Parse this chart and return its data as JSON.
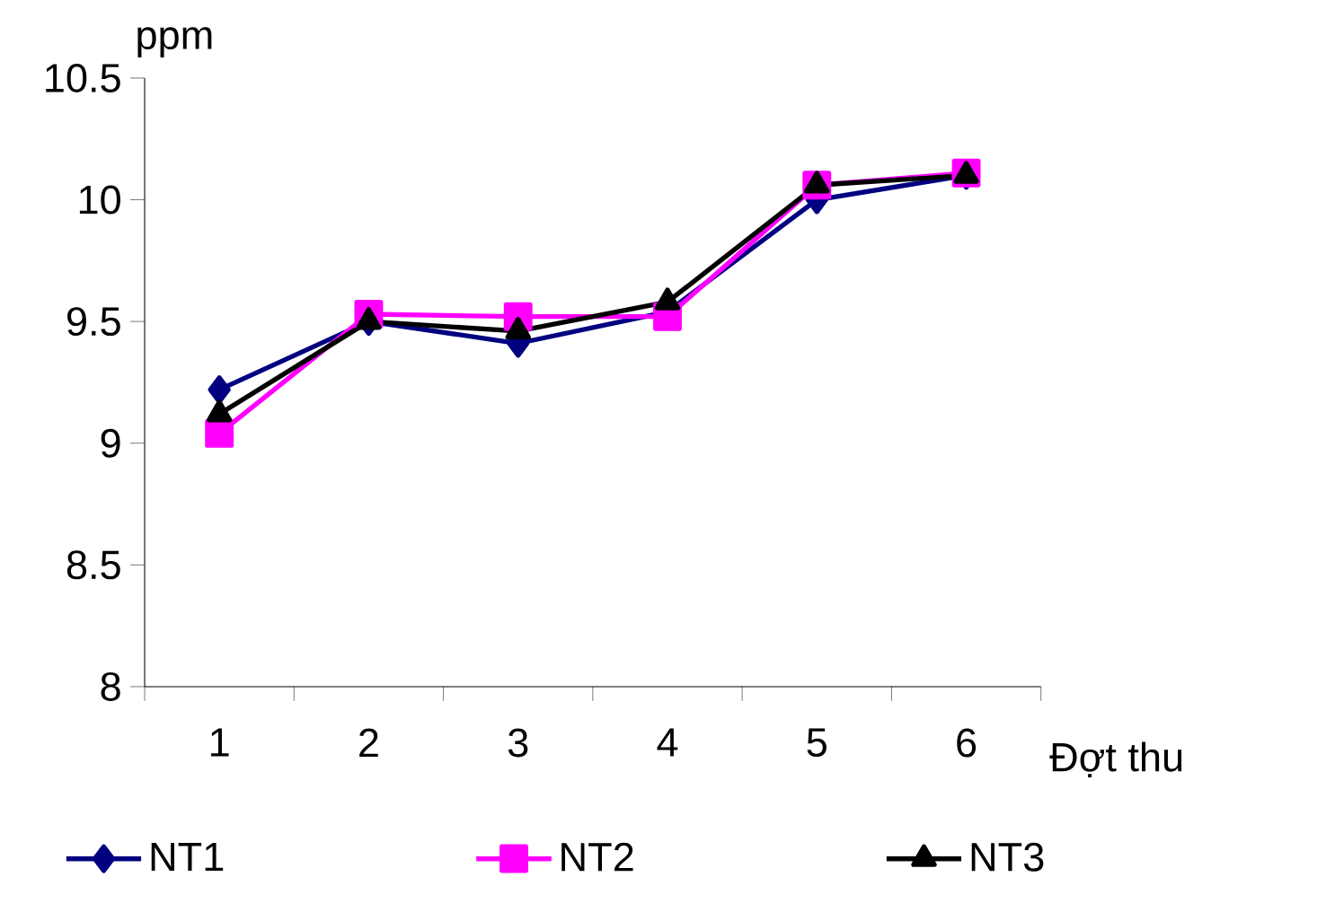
{
  "chart_data": {
    "type": "line",
    "xlabel": "Đợt thu",
    "ylabel": "ppm",
    "categories": [
      "1",
      "2",
      "3",
      "4",
      "5",
      "6"
    ],
    "ylim": [
      8,
      10.5
    ],
    "yticks": [
      8,
      8.5,
      9,
      9.5,
      10,
      10.5
    ],
    "grid": false,
    "legend": "bottom",
    "series": [
      {
        "name": "NT1",
        "color": "#000080",
        "marker": "diamond",
        "values": [
          9.22,
          9.5,
          9.41,
          9.54,
          10.0,
          10.1
        ]
      },
      {
        "name": "NT2",
        "color": "#ff00ff",
        "marker": "square",
        "values": [
          9.04,
          9.53,
          9.52,
          9.52,
          10.06,
          10.11
        ]
      },
      {
        "name": "NT3",
        "color": "#000000",
        "marker": "triangle",
        "values": [
          9.12,
          9.5,
          9.46,
          9.58,
          10.06,
          10.1
        ]
      }
    ]
  }
}
